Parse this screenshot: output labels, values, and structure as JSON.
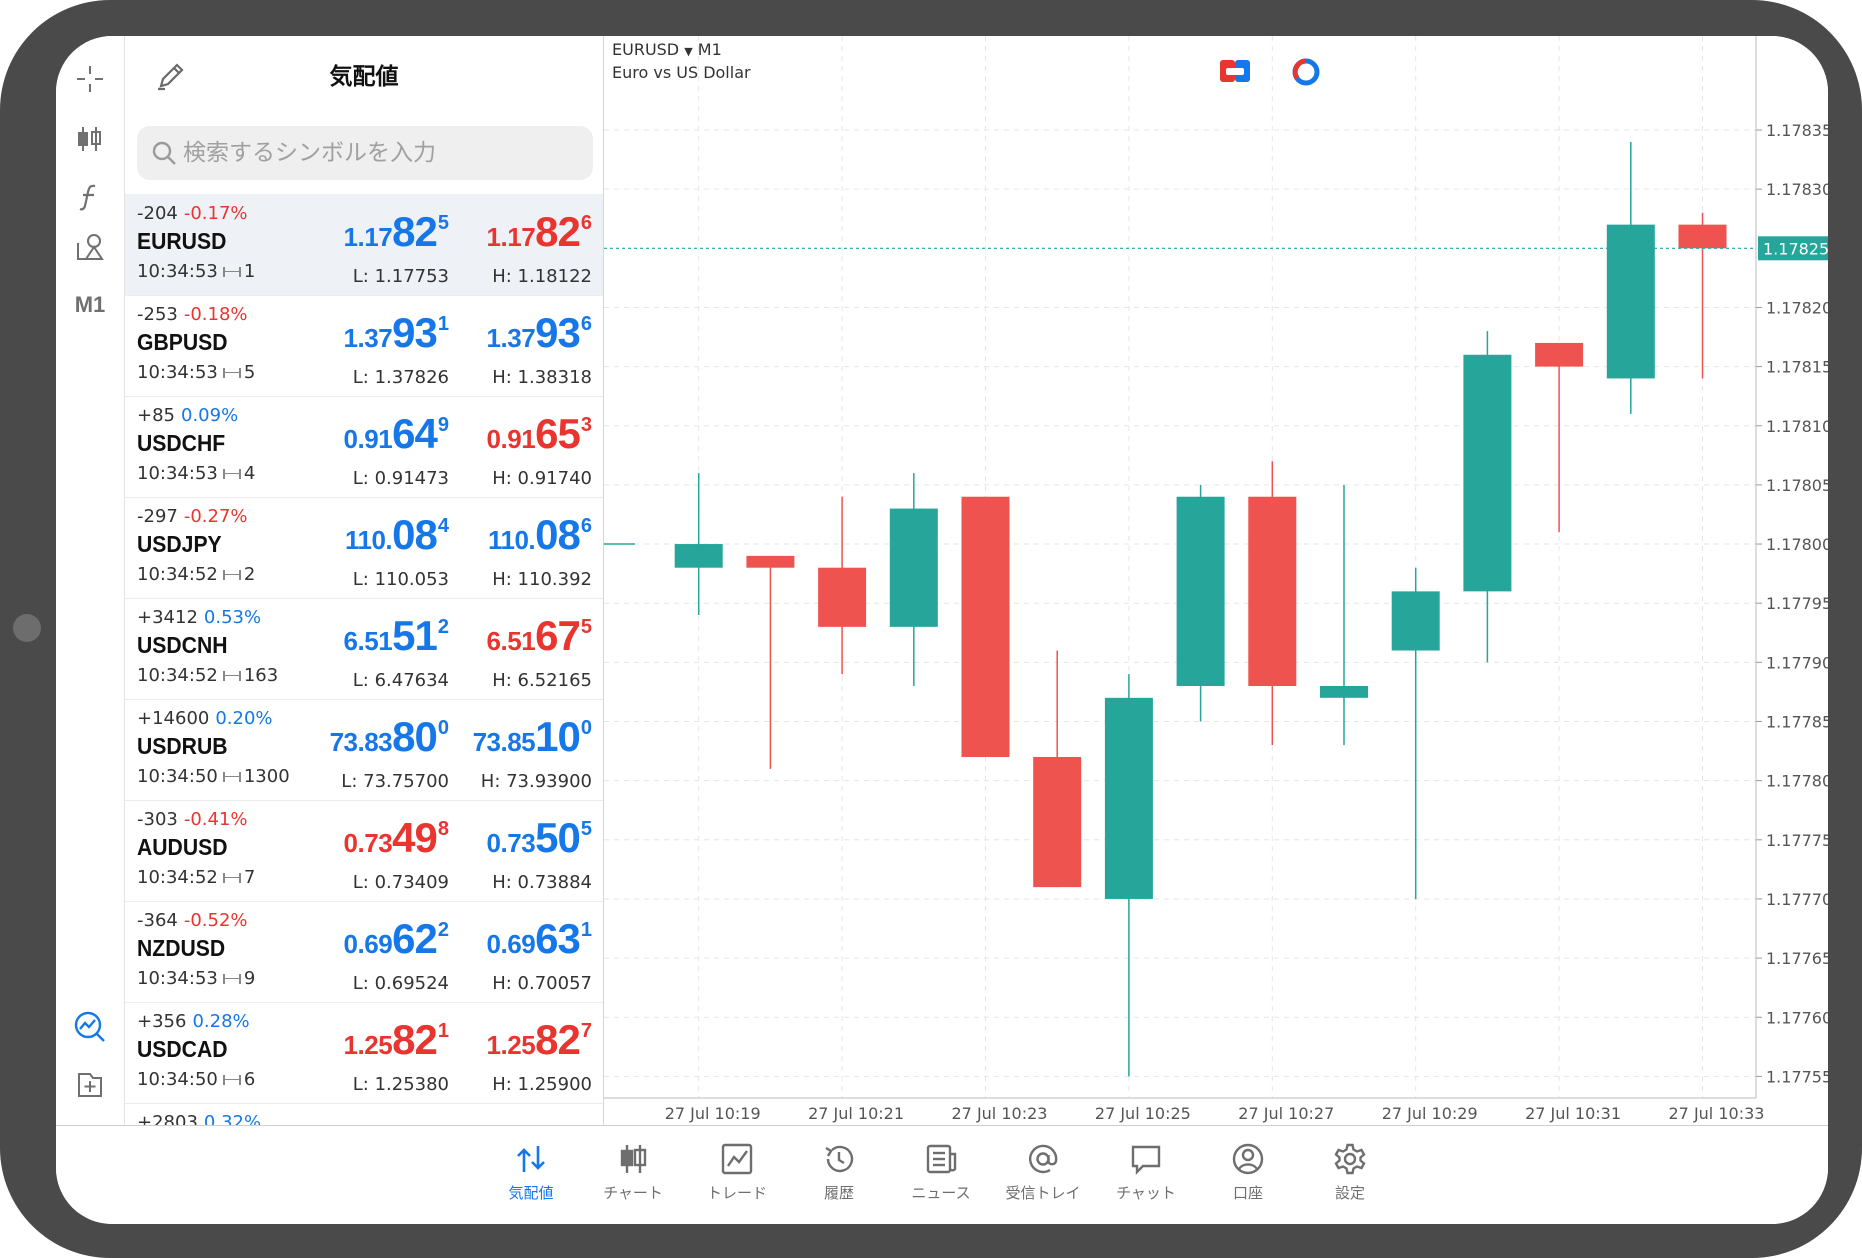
{
  "quotes_panel": {
    "title": "気配値",
    "search_placeholder": "検索するシンボルを入力",
    "rows": [
      {
        "change": "-204",
        "pct": "-0.17%",
        "pct_dir": "dn",
        "symbol": "EURUSD",
        "time": "10:34:53",
        "spread": "1",
        "bid": {
          "small": "1.17",
          "big": "82",
          "sup": "5",
          "dir": "up"
        },
        "ask": {
          "small": "1.17",
          "big": "82",
          "sup": "6",
          "dir": "dn"
        },
        "low": "L: 1.17753",
        "high": "H: 1.18122"
      },
      {
        "change": "-253",
        "pct": "-0.18%",
        "pct_dir": "dn",
        "symbol": "GBPUSD",
        "time": "10:34:53",
        "spread": "5",
        "bid": {
          "small": "1.37",
          "big": "93",
          "sup": "1",
          "dir": "up"
        },
        "ask": {
          "small": "1.37",
          "big": "93",
          "sup": "6",
          "dir": "up"
        },
        "low": "L: 1.37826",
        "high": "H: 1.38318"
      },
      {
        "change": "+85",
        "pct": "0.09%",
        "pct_dir": "up",
        "symbol": "USDCHF",
        "time": "10:34:53",
        "spread": "4",
        "bid": {
          "small": "0.91",
          "big": "64",
          "sup": "9",
          "dir": "up"
        },
        "ask": {
          "small": "0.91",
          "big": "65",
          "sup": "3",
          "dir": "dn"
        },
        "low": "L: 0.91473",
        "high": "H: 0.91740"
      },
      {
        "change": "-297",
        "pct": "-0.27%",
        "pct_dir": "dn",
        "symbol": "USDJPY",
        "time": "10:34:52",
        "spread": "2",
        "bid": {
          "small": "110.",
          "big": "08",
          "sup": "4",
          "dir": "up"
        },
        "ask": {
          "small": "110.",
          "big": "08",
          "sup": "6",
          "dir": "up"
        },
        "low": "L: 110.053",
        "high": "H: 110.392"
      },
      {
        "change": "+3412",
        "pct": "0.53%",
        "pct_dir": "up",
        "symbol": "USDCNH",
        "time": "10:34:52",
        "spread": "163",
        "bid": {
          "small": "6.51",
          "big": "51",
          "sup": "2",
          "dir": "up"
        },
        "ask": {
          "small": "6.51",
          "big": "67",
          "sup": "5",
          "dir": "dn"
        },
        "low": "L: 6.47634",
        "high": "H: 6.52165"
      },
      {
        "change": "+14600",
        "pct": "0.20%",
        "pct_dir": "up",
        "symbol": "USDRUB",
        "time": "10:34:50",
        "spread": "1300",
        "bid": {
          "small": "73.83",
          "big": "80",
          "sup": "0",
          "dir": "up"
        },
        "ask": {
          "small": "73.85",
          "big": "10",
          "sup": "0",
          "dir": "up"
        },
        "low": "L: 73.75700",
        "high": "H: 73.93900"
      },
      {
        "change": "-303",
        "pct": "-0.41%",
        "pct_dir": "dn",
        "symbol": "AUDUSD",
        "time": "10:34:52",
        "spread": "7",
        "bid": {
          "small": "0.73",
          "big": "49",
          "sup": "8",
          "dir": "dn"
        },
        "ask": {
          "small": "0.73",
          "big": "50",
          "sup": "5",
          "dir": "up"
        },
        "low": "L: 0.73409",
        "high": "H: 0.73884"
      },
      {
        "change": "-364",
        "pct": "-0.52%",
        "pct_dir": "dn",
        "symbol": "NZDUSD",
        "time": "10:34:53",
        "spread": "9",
        "bid": {
          "small": "0.69",
          "big": "62",
          "sup": "2",
          "dir": "up"
        },
        "ask": {
          "small": "0.69",
          "big": "63",
          "sup": "1",
          "dir": "up"
        },
        "low": "L: 0.69524",
        "high": "H: 0.70057"
      },
      {
        "change": "+356",
        "pct": "0.28%",
        "pct_dir": "up",
        "symbol": "USDCAD",
        "time": "10:34:50",
        "spread": "6",
        "bid": {
          "small": "1.25",
          "big": "82",
          "sup": "1",
          "dir": "dn"
        },
        "ask": {
          "small": "1.25",
          "big": "82",
          "sup": "7",
          "dir": "dn"
        },
        "low": "L: 1.25380",
        "high": "H: 1.25900"
      },
      {
        "change": "+2803",
        "pct": "0.32%",
        "pct_dir": "up",
        "symbol": "",
        "time": "",
        "spread": "",
        "bid": {
          "small": "",
          "big": "",
          "sup": "",
          "dir": "up"
        },
        "ask": {
          "small": "",
          "big": "",
          "sup": "",
          "dir": "up"
        },
        "low": "",
        "high": ""
      }
    ]
  },
  "rail": {
    "timeframe": "M1",
    "icons": [
      "crosshair-icon",
      "indicator-icon",
      "function-icon",
      "objects-icon",
      "timeframe-m1",
      "chart-monitor-icon",
      "add-icon"
    ]
  },
  "chart": {
    "symbol": "EURUSD",
    "timeframe": "M1",
    "description": "Euro vs US Dollar",
    "current_price_label": "1.17825"
  },
  "chart_data": {
    "type": "candlestick",
    "symbol": "EURUSD",
    "timeframe": "M1",
    "ylim": [
      1.17745,
      1.1784
    ],
    "yticks": [
      "1.17835",
      "1.17830",
      "1.17825",
      "1.17820",
      "1.17815",
      "1.17810",
      "1.17805",
      "1.17800",
      "1.17795",
      "1.17790",
      "1.17785",
      "1.17780",
      "1.17775",
      "1.17770",
      "1.17765",
      "1.17760",
      "1.17755"
    ],
    "xlabels": [
      "27 Jul 10:19",
      "27 Jul 10:21",
      "27 Jul 10:23",
      "27 Jul 10:25",
      "27 Jul 10:27",
      "27 Jul 10:29",
      "27 Jul 10:31",
      "27 Jul 10:33"
    ],
    "current_price": 1.17825,
    "candles": [
      {
        "t": "10:18",
        "o": 1.178,
        "h": 1.178,
        "l": 1.178,
        "c": 1.178
      },
      {
        "t": "10:19",
        "o": 1.17798,
        "h": 1.17806,
        "l": 1.17794,
        "c": 1.178
      },
      {
        "t": "10:20",
        "o": 1.17799,
        "h": 1.17799,
        "l": 1.17781,
        "c": 1.17798
      },
      {
        "t": "10:21",
        "o": 1.17798,
        "h": 1.17804,
        "l": 1.17789,
        "c": 1.17793
      },
      {
        "t": "10:22",
        "o": 1.17793,
        "h": 1.17806,
        "l": 1.17788,
        "c": 1.17803
      },
      {
        "t": "10:23",
        "o": 1.17804,
        "h": 1.17804,
        "l": 1.17782,
        "c": 1.17782
      },
      {
        "t": "10:24",
        "o": 1.17782,
        "h": 1.17791,
        "l": 1.17771,
        "c": 1.17771
      },
      {
        "t": "10:25",
        "o": 1.1777,
        "h": 1.17789,
        "l": 1.17755,
        "c": 1.17787
      },
      {
        "t": "10:26",
        "o": 1.17788,
        "h": 1.17805,
        "l": 1.17785,
        "c": 1.17804
      },
      {
        "t": "10:27",
        "o": 1.17804,
        "h": 1.17807,
        "l": 1.17783,
        "c": 1.17788
      },
      {
        "t": "10:28",
        "o": 1.17787,
        "h": 1.17805,
        "l": 1.17783,
        "c": 1.17788
      },
      {
        "t": "10:29",
        "o": 1.17791,
        "h": 1.17798,
        "l": 1.1777,
        "c": 1.17796
      },
      {
        "t": "10:30",
        "o": 1.17796,
        "h": 1.17818,
        "l": 1.1779,
        "c": 1.17816
      },
      {
        "t": "10:31",
        "o": 1.17817,
        "h": 1.17817,
        "l": 1.17801,
        "c": 1.17815
      },
      {
        "t": "10:32",
        "o": 1.17814,
        "h": 1.17834,
        "l": 1.17811,
        "c": 1.17827
      },
      {
        "t": "10:33",
        "o": 1.17827,
        "h": 1.17828,
        "l": 1.17814,
        "c": 1.17825
      }
    ],
    "colors": {
      "bull": "#26a69a",
      "bear": "#ef5350",
      "grid": "#e6e6e6",
      "price_line": "#26a69a"
    },
    "grid": true
  },
  "nav": {
    "tabs": [
      {
        "label": "気配値",
        "icon": "quotes-arrows-icon",
        "active": true
      },
      {
        "label": "チャート",
        "icon": "candles-icon",
        "active": false
      },
      {
        "label": "トレード",
        "icon": "trade-chart-icon",
        "active": false
      },
      {
        "label": "履歴",
        "icon": "history-clock-icon",
        "active": false
      },
      {
        "label": "ニュース",
        "icon": "news-icon",
        "active": false
      },
      {
        "label": "受信トレイ",
        "icon": "at-icon",
        "active": false
      },
      {
        "label": "チャット",
        "icon": "chat-bubble-icon",
        "active": false
      },
      {
        "label": "口座",
        "icon": "account-icon",
        "active": false
      },
      {
        "label": "設定",
        "icon": "gear-icon",
        "active": false
      }
    ]
  },
  "colors": {
    "accent": "#1577e8",
    "up": "#1577e8",
    "down": "#e8352f"
  }
}
